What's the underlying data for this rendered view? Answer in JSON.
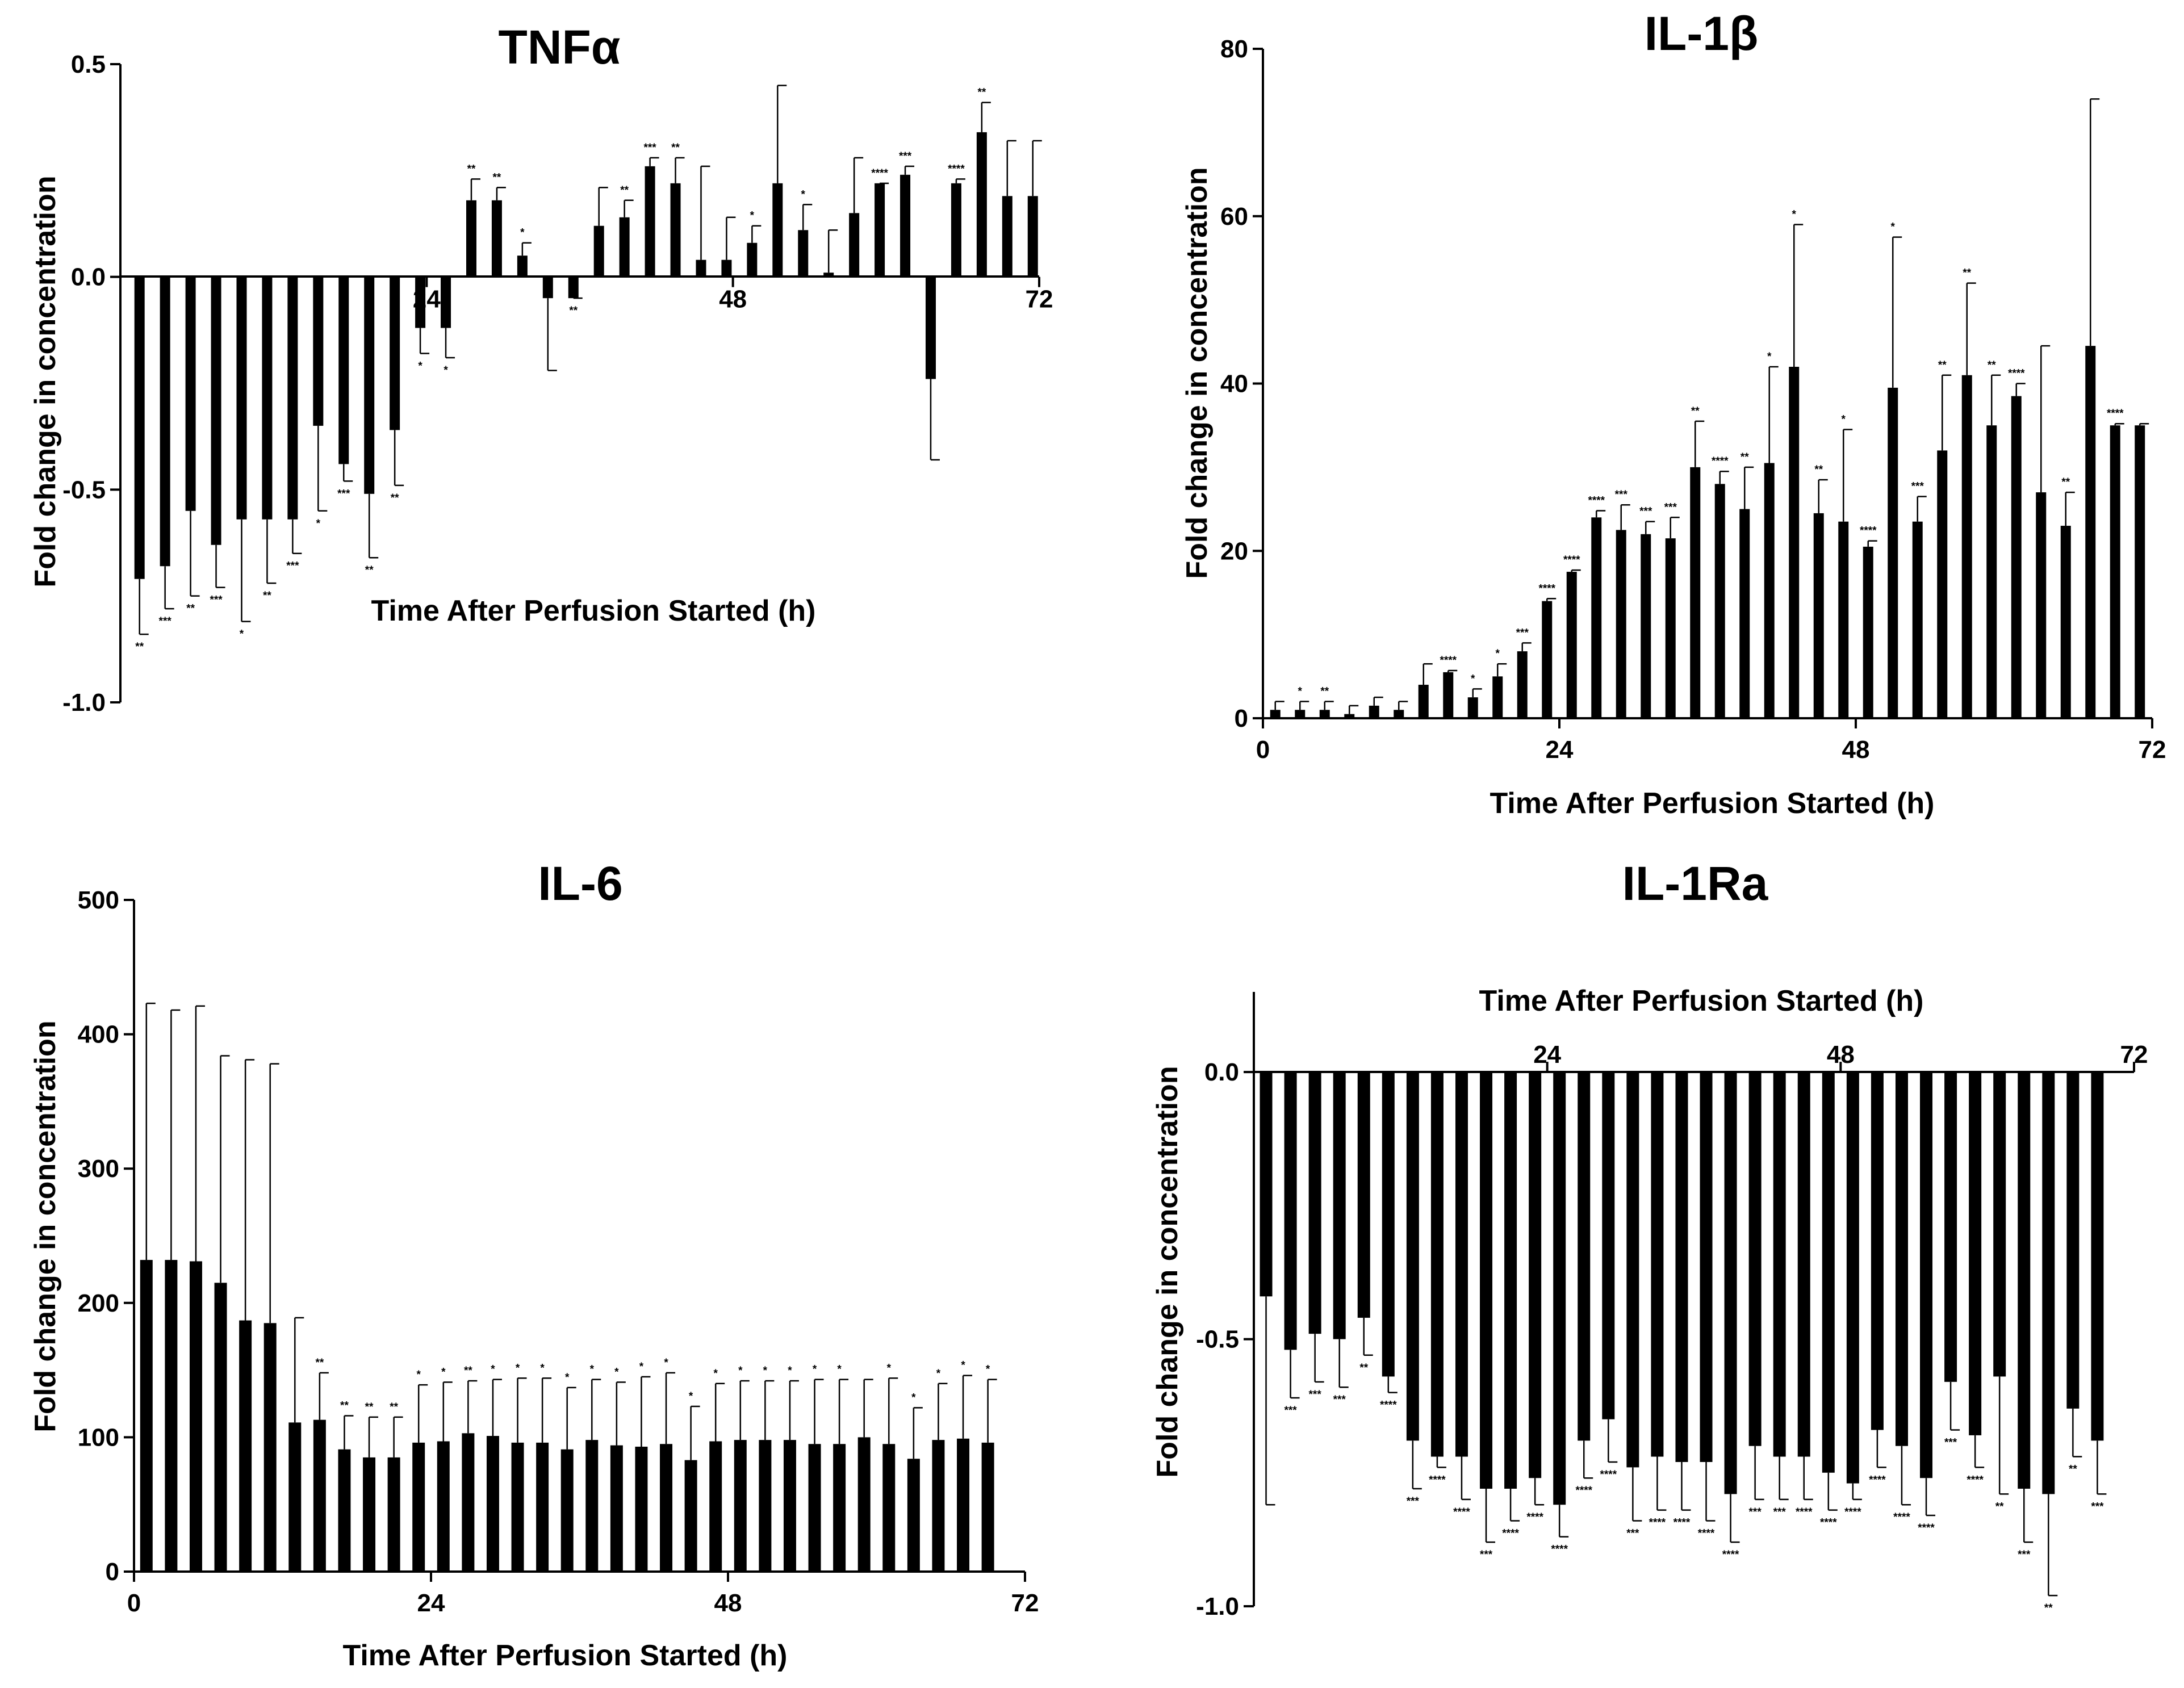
{
  "figure_title": "",
  "chart_data": [
    {
      "id": "tnf",
      "type": "bar",
      "title": "TNFα",
      "xlabel": "Time After Perfusion Started (h)",
      "ylabel": "Fold change in concentration",
      "xlim": [
        0,
        72
      ],
      "ylim": [
        -1.0,
        0.5
      ],
      "xticks": [
        24,
        48,
        72
      ],
      "xtick_labels": [
        "24",
        "48",
        "72"
      ],
      "yticks": [
        -1.0,
        -0.5,
        0.0,
        0.5
      ],
      "ytick_labels": [
        "-1.0",
        "-0.5",
        "0.0",
        "0.5"
      ],
      "x": [
        1.5,
        3.5,
        5.5,
        7.5,
        9.5,
        11.5,
        13.5,
        15.5,
        17.5,
        19.5,
        21.5,
        23.5,
        25.5,
        27.5,
        29.5,
        31.5,
        33.5,
        35.5,
        37.5,
        39.5,
        41.5,
        43.5,
        45.5,
        47.5,
        49.5,
        51.5,
        53.5,
        55.5,
        57.5,
        59.5,
        61.5,
        63.5,
        65.5,
        67.5,
        69.5,
        71.5
      ],
      "values": [
        -0.71,
        -0.68,
        -0.55,
        -0.63,
        -0.57,
        -0.57,
        -0.57,
        -0.35,
        -0.44,
        -0.51,
        -0.36,
        -0.12,
        -0.12,
        0.18,
        0.18,
        0.05,
        -0.05,
        -0.05,
        0.12,
        0.14,
        0.26,
        0.22,
        0.04,
        0.04,
        0.08,
        0.22,
        0.11,
        0.01,
        0.15,
        0.22,
        0.24,
        -0.24,
        0.22,
        0.34,
        0.19,
        0.19
      ],
      "errors": [
        0.13,
        0.1,
        0.2,
        0.1,
        0.24,
        0.15,
        0.08,
        0.2,
        0.04,
        0.15,
        0.13,
        0.06,
        0.07,
        0.05,
        0.03,
        0.03,
        0.17,
        0.0,
        0.09,
        0.04,
        0.02,
        0.06,
        0.22,
        0.1,
        0.04,
        0.23,
        0.06,
        0.1,
        0.13,
        0.0,
        0.02,
        0.19,
        0.01,
        0.07,
        0.13,
        0.13
      ],
      "significance": [
        "**",
        "***",
        "**",
        "***",
        "*",
        "**",
        "***",
        "*",
        "***",
        "**",
        "**",
        "*",
        "*",
        "**",
        "**",
        "*",
        "",
        "**",
        "",
        "**",
        "***",
        "**",
        "",
        "",
        "*",
        "",
        "*",
        "",
        "",
        "****",
        "***",
        "",
        "****",
        "**",
        "",
        ""
      ]
    },
    {
      "id": "il1b",
      "type": "bar",
      "title": "IL-1β",
      "xlabel": "Time After Perfusion Started (h)",
      "ylabel": "Fold change in concentration",
      "xlim": [
        0,
        72
      ],
      "ylim": [
        0,
        80
      ],
      "xticks": [
        0,
        24,
        48,
        72
      ],
      "xtick_labels": [
        "0",
        "24",
        "48",
        "72"
      ],
      "yticks": [
        0,
        20,
        40,
        60,
        80
      ],
      "ytick_labels": [
        "0",
        "20",
        "40",
        "60",
        "80"
      ],
      "x": [
        1,
        3,
        5,
        7,
        9,
        11,
        13,
        15,
        17,
        19,
        21,
        23,
        25,
        27,
        29,
        31,
        33,
        35,
        37,
        39,
        41,
        43,
        45,
        47,
        49,
        51,
        53,
        55,
        57,
        59,
        61,
        63,
        65,
        67,
        69,
        71
      ],
      "values": [
        1,
        1,
        1,
        0.5,
        1.5,
        1,
        4,
        5.5,
        2.5,
        5,
        8,
        14,
        17.5,
        24,
        22.5,
        22,
        21.5,
        30,
        28,
        25,
        30.5,
        42,
        24.5,
        23.5,
        20.5,
        39.5,
        23.5,
        32,
        41,
        35,
        38.5,
        27,
        23,
        44.5,
        35,
        35
      ],
      "errors": [
        1,
        1,
        1,
        1,
        1,
        1,
        2.5,
        0.2,
        1,
        1.5,
        1,
        0.3,
        0.2,
        0.8,
        3,
        1.5,
        2.5,
        5.5,
        1.5,
        5,
        11.5,
        17,
        4,
        11,
        0.7,
        18,
        3,
        9,
        11,
        6,
        1.5,
        17.5,
        4,
        29.5,
        0.2,
        0.2
      ],
      "significance": [
        "",
        "*",
        "**",
        "",
        "",
        "",
        "",
        "****",
        "*",
        "*",
        "***",
        "****",
        "****",
        "****",
        "***",
        "***",
        "***",
        "**",
        "****",
        "**",
        "*",
        "*",
        "**",
        "*",
        "****",
        "*",
        "***",
        "**",
        "**",
        "**",
        "****",
        "",
        "**",
        "",
        "****",
        ""
      ]
    },
    {
      "id": "il6",
      "type": "bar",
      "title": "IL-6",
      "xlabel": "Time After Perfusion Started (h)",
      "ylabel": "Fold change in concentration",
      "xlim": [
        0,
        72
      ],
      "ylim": [
        0,
        500
      ],
      "xticks": [
        0,
        24,
        48,
        72
      ],
      "xtick_labels": [
        "0",
        "24",
        "48",
        "72"
      ],
      "yticks": [
        0,
        100,
        200,
        300,
        400,
        500
      ],
      "ytick_labels": [
        "0",
        "100",
        "200",
        "300",
        "400",
        "500"
      ],
      "x": [
        1,
        3,
        5,
        7,
        9,
        11,
        13,
        15,
        17,
        19,
        21,
        23,
        25,
        27,
        29,
        31,
        33,
        35,
        37,
        39,
        41,
        43,
        45,
        47,
        49,
        51,
        53,
        55,
        57,
        59,
        61,
        63,
        65,
        67,
        69
      ],
      "values": [
        232,
        232,
        231,
        215,
        187,
        185,
        111,
        113,
        91,
        85,
        85,
        96,
        97,
        103,
        101,
        96,
        96,
        91,
        98,
        94,
        93,
        95,
        83,
        97,
        98,
        98,
        98,
        95,
        95,
        100,
        95,
        84,
        98,
        99,
        96
      ],
      "errors": [
        191,
        186,
        190,
        169,
        194,
        193,
        78,
        35,
        25,
        30,
        30,
        43,
        44,
        39,
        42,
        48,
        48,
        46,
        45,
        47,
        52,
        53,
        40,
        43,
        44,
        44,
        44,
        48,
        48,
        43,
        49,
        38,
        42,
        47,
        47
      ],
      "significance": [
        "",
        "",
        "",
        "",
        "",
        "",
        "",
        "**",
        "**",
        "**",
        "**",
        "*",
        "*",
        "**",
        "*",
        "*",
        "*",
        "*",
        "*",
        "*",
        "*",
        "*",
        "*",
        "*",
        "*",
        "*",
        "*",
        "*",
        "*",
        "",
        "*",
        "*",
        "*",
        "*",
        "*"
      ]
    },
    {
      "id": "il1ra",
      "type": "bar",
      "title": "IL-1Ra",
      "xlabel": "Time After Perfusion Started (h)",
      "ylabel": "Fold change in concentration",
      "xlim": [
        0,
        72
      ],
      "ylim": [
        -1.0,
        0.15
      ],
      "xticks": [
        24,
        48,
        72
      ],
      "xtick_labels": [
        "24",
        "48",
        "72"
      ],
      "yticks": [
        -1.0,
        -0.5,
        0.0
      ],
      "ytick_labels": [
        "-1.0",
        "-0.5",
        "0.0"
      ],
      "x": [
        1,
        3,
        5,
        7,
        9,
        11,
        13,
        15,
        17,
        19,
        21,
        23,
        25,
        27,
        29,
        31,
        33,
        35,
        37,
        39,
        41,
        43,
        45,
        47,
        49,
        51,
        53,
        55,
        57,
        59,
        61,
        63,
        65,
        67,
        69
      ],
      "values": [
        -0.42,
        -0.52,
        -0.49,
        -0.5,
        -0.46,
        -0.57,
        -0.69,
        -0.72,
        -0.72,
        -0.78,
        -0.78,
        -0.76,
        -0.81,
        -0.69,
        -0.65,
        -0.74,
        -0.72,
        -0.73,
        -0.73,
        -0.79,
        -0.7,
        -0.72,
        -0.72,
        -0.75,
        -0.77,
        -0.67,
        -0.7,
        -0.76,
        -0.58,
        -0.68,
        -0.57,
        -0.78,
        -0.79,
        -0.63,
        -0.69
      ],
      "errors": [
        0.39,
        0.09,
        0.09,
        0.09,
        0.07,
        0.03,
        0.09,
        0.02,
        0.08,
        0.1,
        0.06,
        0.05,
        0.06,
        0.07,
        0.08,
        0.1,
        0.1,
        0.09,
        0.11,
        0.09,
        0.1,
        0.08,
        0.08,
        0.07,
        0.03,
        0.07,
        0.11,
        0.07,
        0.09,
        0.06,
        0.22,
        0.1,
        0.19,
        0.09,
        0.1
      ],
      "significance": [
        "",
        "***",
        "***",
        "***",
        "**",
        "****",
        "***",
        "****",
        "****",
        "***",
        "****",
        "****",
        "****",
        "****",
        "****",
        "***",
        "****",
        "****",
        "****",
        "****",
        "***",
        "***",
        "****",
        "****",
        "****",
        "****",
        "****",
        "****",
        "***",
        "****",
        "**",
        "***",
        "**",
        "**",
        "***"
      ]
    }
  ]
}
